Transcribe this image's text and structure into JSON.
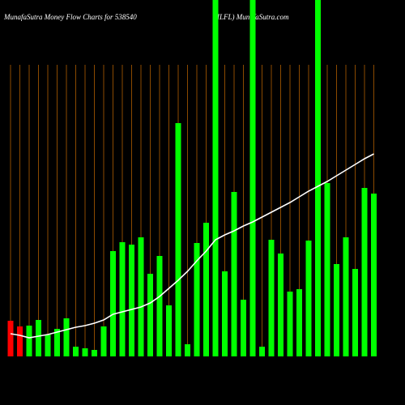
{
  "chart_data": {
    "type": "bar",
    "title": "MunafaSutra  Money Flow  Charts for 538540",
    "subtitle": "(ILFL) MunafaSutra.com",
    "categories": [
      null,
      null,
      null,
      null,
      null,
      null,
      null,
      null,
      null,
      null,
      null,
      null,
      null,
      null,
      null,
      null,
      null,
      null,
      null,
      null,
      null,
      null,
      null,
      null,
      null,
      null,
      null,
      null,
      null,
      null,
      null,
      null,
      null,
      null,
      null,
      null,
      null,
      null,
      null,
      null
    ],
    "values": [
      44,
      37,
      38,
      45,
      27,
      34,
      47,
      12,
      10,
      8,
      37,
      130,
      141,
      138,
      147,
      102,
      124,
      63,
      288,
      15,
      140,
      165,
      440,
      105,
      203,
      70,
      440,
      12,
      144,
      127,
      80,
      83,
      143,
      440,
      214,
      114,
      147,
      108,
      208,
      201
    ],
    "colors": [
      "#ff0000",
      "#ff0000",
      "#00ff00",
      "#00ff00",
      "#00ff00",
      "#00ff00",
      "#00ff00",
      "#00ff00",
      "#00ff00",
      "#00ff00",
      "#00ff00",
      "#00ff00",
      "#00ff00",
      "#00ff00",
      "#00ff00",
      "#00ff00",
      "#00ff00",
      "#00ff00",
      "#00ff00",
      "#00ff00",
      "#00ff00",
      "#00ff00",
      "#00ff00",
      "#00ff00",
      "#00ff00",
      "#00ff00",
      "#00ff00",
      "#00ff00",
      "#00ff00",
      "#00ff00",
      "#00ff00",
      "#00ff00",
      "#00ff00",
      "#00ff00",
      "#00ff00",
      "#00ff00",
      "#00ff00",
      "#00ff00",
      "#00ff00",
      "#00ff00"
    ],
    "line_values": [
      28,
      26,
      23,
      25,
      27,
      30,
      33,
      36,
      38,
      41,
      45,
      52,
      55,
      58,
      61,
      66,
      74,
      84,
      94,
      105,
      118,
      130,
      144,
      150,
      155,
      161,
      166,
      172,
      178,
      184,
      190,
      197,
      204,
      210,
      216,
      223,
      230,
      237,
      244,
      250
    ],
    "line_color": "#ffffff",
    "grid_color": "#8b4a00",
    "ylim": [
      0,
      440
    ],
    "grid": true
  }
}
